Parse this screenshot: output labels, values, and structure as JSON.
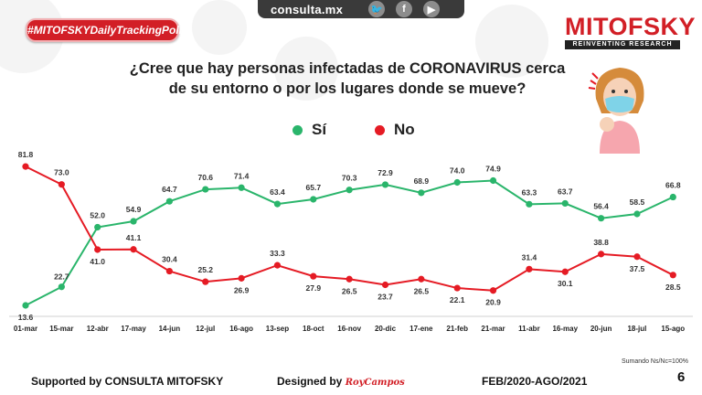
{
  "header": {
    "badge": "#MITOFSKYDailyTrackingPoll",
    "site": "consulta.mx",
    "social": [
      "twitter-icon",
      "facebook-icon",
      "youtube-icon"
    ],
    "social_glyphs": [
      "🐦",
      "f",
      "▶"
    ],
    "logo_name": "MITOFSKY",
    "logo_tagline": "REINVENTING RESEARCH"
  },
  "question": {
    "line1": "¿Cree que hay personas infectadas de CORONAVIRUS cerca",
    "line2": "de su entorno o por los lugares donde se mueve?"
  },
  "colors": {
    "si": "#2ab56b",
    "no": "#e51b24",
    "brand": "#d21f26"
  },
  "chart_data": {
    "type": "line",
    "title": "¿Cree que hay personas infectadas de CORONAVIRUS cerca de su entorno o por los lugares donde se mueve?",
    "categories": [
      "01-mar",
      "15-mar",
      "12-abr",
      "17-may",
      "14-jun",
      "12-jul",
      "16-ago",
      "13-sep",
      "18-oct",
      "16-nov",
      "20-dic",
      "17-ene",
      "21-feb",
      "21-mar",
      "11-abr",
      "16-may",
      "20-jun",
      "18-jul",
      "15-ago"
    ],
    "series": [
      {
        "name": "Sí",
        "color": "#2ab56b",
        "values": [
          13.6,
          22.7,
          52.0,
          54.9,
          64.7,
          70.6,
          71.4,
          63.4,
          65.7,
          70.3,
          72.9,
          68.9,
          74.0,
          74.9,
          63.3,
          63.7,
          56.4,
          58.5,
          66.8
        ],
        "labels": [
          "13.6",
          "22.7",
          "52.0",
          "54.9",
          "64.7",
          "70.6",
          "71.4",
          "63.4",
          "65.7",
          "70.3",
          "72.9",
          "68.9",
          "74.0",
          "74.9",
          "63.3",
          "63.7",
          "56.4",
          "58.5",
          "66.8"
        ]
      },
      {
        "name": "No",
        "color": "#e51b24",
        "values": [
          81.8,
          73.0,
          41.0,
          41.1,
          30.4,
          25.2,
          26.9,
          33.3,
          27.9,
          26.5,
          23.7,
          26.5,
          22.1,
          20.9,
          31.4,
          30.1,
          38.8,
          37.5,
          28.5
        ],
        "labels": [
          "81.8",
          "73.0",
          "41.0",
          "41.1",
          "30.4",
          "25.2",
          "26.9",
          "33.3",
          "27.9",
          "26.5",
          "23.7",
          "26.5",
          "22.1",
          "20.9",
          "31.4",
          "30.1",
          "38.8",
          "37.5",
          "28.5"
        ]
      }
    ],
    "ylim": [
      10,
      85
    ],
    "xlabel": "",
    "ylabel": ""
  },
  "legend": {
    "si": "Sí",
    "no": "No"
  },
  "footer": {
    "supported": "Supported by  CONSULTA  MITOFSKY",
    "designed": "Designed by",
    "designer": "RoyCampos",
    "period": "FEB/2020-AGO/2021",
    "note": "Sumando Ns/Nc=100%",
    "page": "6"
  }
}
